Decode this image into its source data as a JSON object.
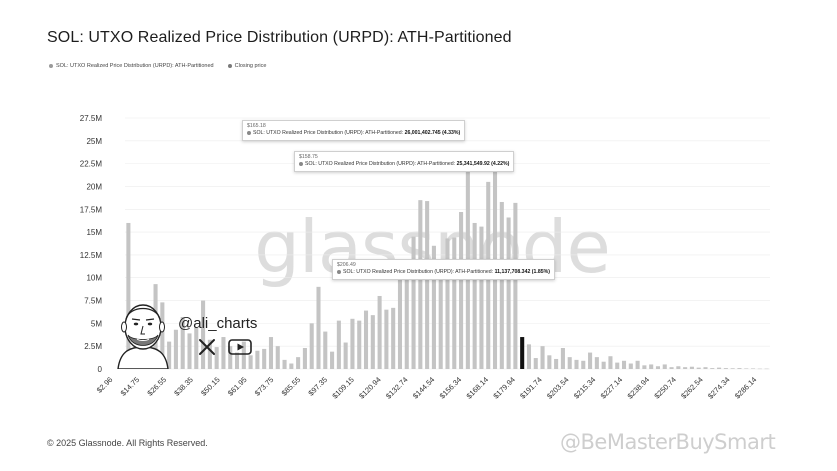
{
  "title": "SOL: UTXO Realized Price Distribution (URPD): ATH-Partitioned",
  "legend": [
    {
      "label": "SOL: UTXO Realized Price Distribution (URPD): ATH-Partitioned",
      "color": "#9a9a9a"
    },
    {
      "label": "Closing price",
      "color": "#7a7a7a"
    }
  ],
  "footer": "© 2025 Glassnode. All Rights Reserved.",
  "watermark_brand": "glassnode",
  "watermark_site": "@BeMasterBuySmart",
  "author_handle": "@ali_charts",
  "icons": [
    "x-icon",
    "youtube-icon",
    "avatar-icon"
  ],
  "tooltips": [
    {
      "x": "$165.18",
      "series": "SOL: UTXO Realized Price Distribution (URPD): ATH-Partitioned:",
      "value": "26,001,402.745 (4.33%)"
    },
    {
      "x": "$158.75",
      "series": "SOL: UTXO Realized Price Distribution (URPD): ATH-Partitioned:",
      "value": "25,341,549.92 (4.22%)"
    },
    {
      "x": "$206.49",
      "series": "SOL: UTXO Realized Price Distribution (URPD): ATH-Partitioned:",
      "value": "11,137,708.342 (1.85%)"
    }
  ],
  "chart_data": {
    "type": "bar",
    "ylim": [
      0,
      27500000
    ],
    "ytick_values": [
      0,
      2500000,
      5000000,
      7500000,
      10000000,
      12500000,
      15000000,
      17500000,
      20000000,
      22500000,
      25000000,
      27500000
    ],
    "ytick_labels": [
      "0",
      "2.5M",
      "5M",
      "7.5M",
      "10M",
      "12.5M",
      "15M",
      "17.5M",
      "20M",
      "22.5M",
      "25M",
      "27.5M"
    ],
    "xtick_labels": [
      "$2.96",
      "$14.75",
      "$26.55",
      "$38.35",
      "$50.15",
      "$61.95",
      "$73.75",
      "$85.55",
      "$97.35",
      "$109.15",
      "$120.94",
      "$132.74",
      "$144.54",
      "$156.34",
      "$168.14",
      "$179.94",
      "$191.74",
      "$203.54",
      "$215.34",
      "$227.14",
      "$238.94",
      "$250.74",
      "$262.54",
      "$274.34",
      "$286.14"
    ],
    "bar_color": "#c4c4c4",
    "highlight_color": "#111111",
    "highlight_index": 58,
    "values": [
      16000000,
      4600000,
      3300000,
      4000000,
      9300000,
      7300000,
      3000000,
      4300000,
      5700000,
      3900000,
      4500000,
      7500000,
      3200000,
      2400000,
      3500000,
      2500000,
      1800000,
      3000000,
      1500000,
      2000000,
      2200000,
      3500000,
      2500000,
      1000000,
      600000,
      1300000,
      2300000,
      5000000,
      9000000,
      4100000,
      1900000,
      5300000,
      2900000,
      5500000,
      5300000,
      6400000,
      5900000,
      8000000,
      6500000,
      6700000,
      11000000,
      12000000,
      14500000,
      18500000,
      18400000,
      13500000,
      10500000,
      14300000,
      14400000,
      17200000,
      22500000,
      16000000,
      15600000,
      20500000,
      23800000,
      18300000,
      16600000,
      18200000,
      3500000,
      2700000,
      1200000,
      2500000,
      1500000,
      1100000,
      2300000,
      1300000,
      1000000,
      900000,
      1800000,
      1300000,
      800000,
      1400000,
      700000,
      900000,
      600000,
      900000,
      400000,
      500000,
      300000,
      500000,
      200000,
      300000,
      200000,
      250000,
      150000,
      200000,
      100000,
      150000,
      100000,
      80000,
      100000,
      60000,
      60000,
      40000,
      40000
    ]
  }
}
